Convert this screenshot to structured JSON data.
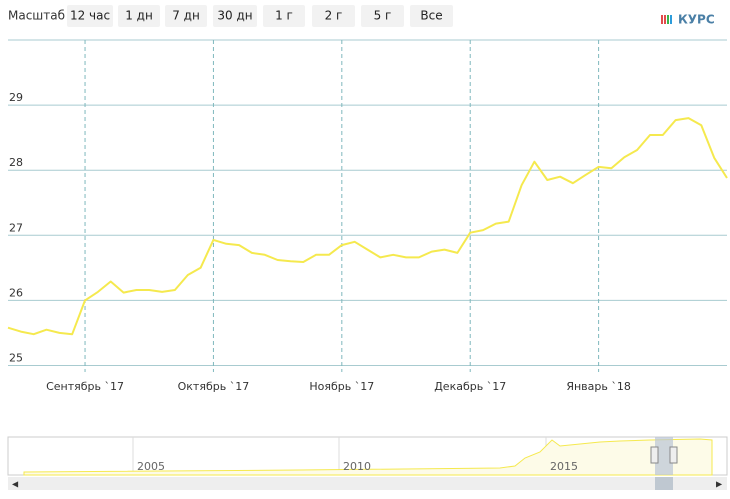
{
  "chart_data": {
    "type": "line",
    "range_selector": {
      "label": "Масштаб",
      "buttons": [
        "12 час",
        "1 дн",
        "7 дн",
        "30 дн",
        "1 г",
        "2 г",
        "5 г",
        "Все"
      ]
    },
    "logo": "КУРС",
    "categories": [
      null,
      null,
      null,
      null,
      null,
      null,
      "Сентябрь `17",
      null,
      null,
      null,
      null,
      null,
      null,
      null,
      null,
      null,
      "Октябрь `17",
      null,
      null,
      null,
      null,
      null,
      null,
      null,
      null,
      null,
      "Ноябрь `17",
      null,
      null,
      null,
      null,
      null,
      null,
      null,
      null,
      null,
      "Декабрь `17",
      null,
      null,
      null,
      null,
      null,
      null,
      null,
      null,
      null,
      "Январь `18",
      null,
      null,
      null,
      null,
      null,
      null,
      null,
      null,
      null,
      null
    ],
    "series": [
      {
        "color": "#f5e94e",
        "values": [
          25.58,
          25.52,
          25.48,
          25.55,
          25.5,
          25.48,
          26.0,
          26.13,
          26.29,
          26.12,
          26.16,
          26.16,
          26.13,
          26.16,
          26.39,
          26.5,
          26.93,
          26.87,
          26.85,
          26.73,
          26.7,
          26.62,
          26.6,
          26.59,
          26.7,
          26.7,
          26.85,
          26.9,
          26.78,
          26.66,
          26.7,
          26.66,
          26.66,
          26.75,
          26.78,
          26.73,
          27.04,
          27.08,
          27.18,
          27.21,
          27.77,
          28.13,
          27.85,
          27.9,
          27.8,
          27.93,
          28.05,
          28.03,
          28.2,
          28.31,
          28.54,
          28.54,
          28.77,
          28.8,
          28.69,
          28.19,
          27.88
        ]
      }
    ],
    "ylim": [
      24.9,
      30
    ],
    "yticks": [
      25,
      26,
      27,
      28,
      29
    ],
    "grid": true,
    "navigator": {
      "labels": [
        "2005",
        "2010",
        "2015"
      ]
    }
  }
}
